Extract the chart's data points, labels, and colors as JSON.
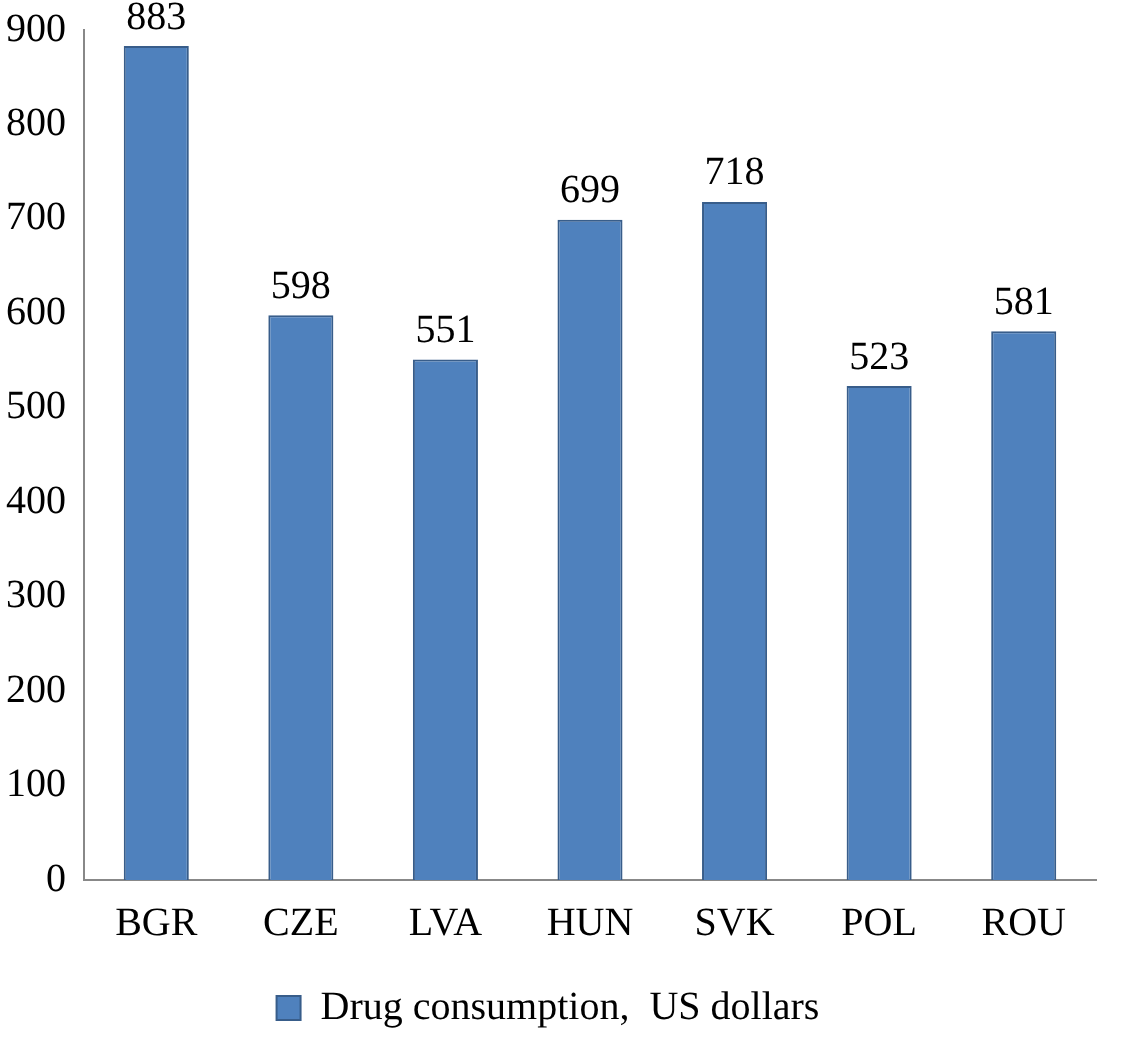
{
  "chart_data": {
    "type": "bar",
    "categories": [
      "BGR",
      "CZE",
      "LVA",
      "HUN",
      "SVK",
      "POL",
      "ROU"
    ],
    "series": [
      {
        "name": "Drug consumption,  US dollars",
        "color": "#4f81bd",
        "values": [
          883,
          598,
          551,
          699,
          718,
          523,
          581
        ]
      }
    ],
    "ylim": [
      0,
      900
    ],
    "yticks": [
      0,
      100,
      200,
      300,
      400,
      500,
      600,
      700,
      800,
      900
    ],
    "data_labels": true,
    "grid": false,
    "legend": "bottom"
  }
}
